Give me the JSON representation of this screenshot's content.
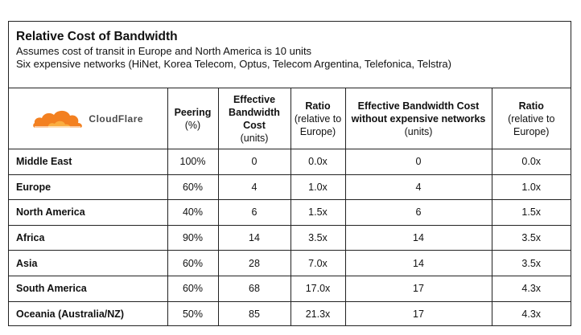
{
  "header": {
    "title": "Relative Cost of Bandwidth",
    "line1": "Assumes cost of transit in Europe and North America is 10 units",
    "line2": "Six expensive networks (HiNet, Korea Telecom, Optus, Telecom Argentina, Telefonica, Telstra)"
  },
  "logo": {
    "text": "CloudFlare",
    "cloud_color": "#f38020"
  },
  "columns": [
    {
      "bold": "Peering",
      "sub": "(%)"
    },
    {
      "bold": "Effective Bandwidth Cost",
      "sub": "(units)"
    },
    {
      "bold": "Ratio",
      "sub": "(relative to Europe)"
    },
    {
      "bold": "Effective Bandwidth Cost without expensive networks",
      "sub": "(units)"
    },
    {
      "bold": "Ratio",
      "sub": "(relative to Europe)"
    }
  ],
  "rows": [
    {
      "region": "Middle East",
      "peering": "100%",
      "cost": "0",
      "ratio": "0.0x",
      "cost2": "0",
      "ratio2": "0.0x"
    },
    {
      "region": "Europe",
      "peering": "60%",
      "cost": "4",
      "ratio": "1.0x",
      "cost2": "4",
      "ratio2": "1.0x"
    },
    {
      "region": "North America",
      "peering": "40%",
      "cost": "6",
      "ratio": "1.5x",
      "cost2": "6",
      "ratio2": "1.5x"
    },
    {
      "region": "Africa",
      "peering": "90%",
      "cost": "14",
      "ratio": "3.5x",
      "cost2": "14",
      "ratio2": "3.5x"
    },
    {
      "region": "Asia",
      "peering": "60%",
      "cost": "28",
      "ratio": "7.0x",
      "cost2": "14",
      "ratio2": "3.5x"
    },
    {
      "region": "South America",
      "peering": "60%",
      "cost": "68",
      "ratio": "17.0x",
      "cost2": "17",
      "ratio2": "4.3x"
    },
    {
      "region": "Oceania (Australia/NZ)",
      "peering": "50%",
      "cost": "85",
      "ratio": "21.3x",
      "cost2": "17",
      "ratio2": "4.3x"
    }
  ]
}
